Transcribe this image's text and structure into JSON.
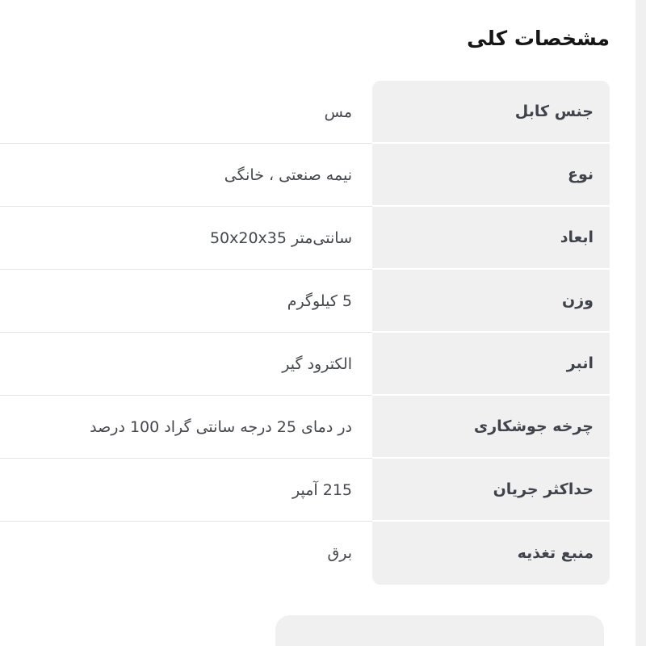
{
  "page": {
    "language": "fa",
    "direction": "rtl",
    "section_title": "مشخصات کلی"
  },
  "specs": {
    "rows": [
      {
        "label": "جنس کابل",
        "value": "مس"
      },
      {
        "label": "نوع",
        "value": "نیمه صنعتی ، خانگی"
      },
      {
        "label": "ابعاد",
        "value": "سانتی‌متر 50x20x35"
      },
      {
        "label": "وزن",
        "value": "5 کیلوگرم"
      },
      {
        "label": "انبر",
        "value": "الکترود گیر"
      },
      {
        "label": "چرخه جوشکاری",
        "value": "در دمای 25 درجه سانتی گراد 100 درصد"
      },
      {
        "label": "حداکثر جریان",
        "value": "215 آمپر"
      },
      {
        "label": "منبع تغذیه",
        "value": "برق"
      }
    ]
  },
  "colors": {
    "label_cell_background": "#f0f0f1",
    "page_gutter": "#f0f0f1",
    "divider": "#e5e5e7",
    "title_text": "#161616",
    "cell_text": "#42454c"
  }
}
